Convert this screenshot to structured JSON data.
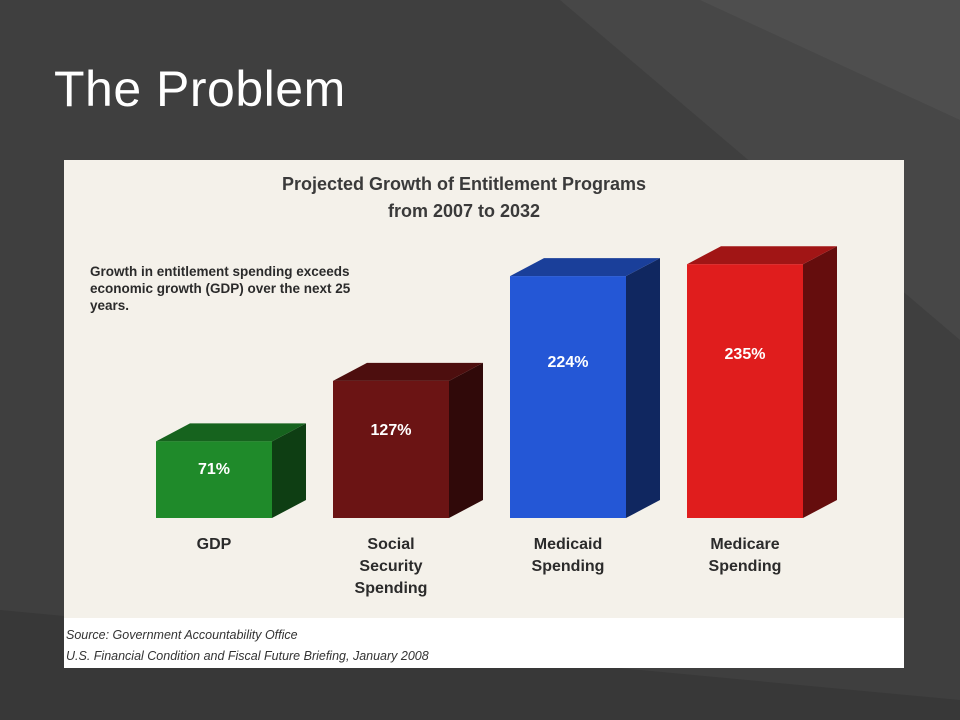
{
  "slide": {
    "title": "The Problem"
  },
  "chart_data": {
    "type": "bar",
    "title": "Projected Growth of Entitlement Programs",
    "subtitle": "from 2007 to 2032",
    "annotation": "Growth in entitlement spending exceeds economic growth (GDP) over the next 25 years.",
    "categories": [
      "GDP",
      "Social Security Spending",
      "Medicaid Spending",
      "Medicare Spending"
    ],
    "category_lines": [
      [
        "GDP"
      ],
      [
        "Social",
        "Security",
        "Spending"
      ],
      [
        "Medicaid",
        "Spending"
      ],
      [
        "Medicare",
        "Spending"
      ]
    ],
    "values": [
      71,
      127,
      224,
      235
    ],
    "value_labels": [
      "71%",
      "127%",
      "224%",
      "235%"
    ],
    "colors": [
      "#1f8a2a",
      "#6b1414",
      "#2457d6",
      "#e01d1d"
    ],
    "ylim": [
      0,
      250
    ],
    "grid": false,
    "legend": false,
    "source": [
      "Source: Government Accountability Office",
      "U.S. Financial Condition and Fiscal Future Briefing, January 2008"
    ]
  }
}
